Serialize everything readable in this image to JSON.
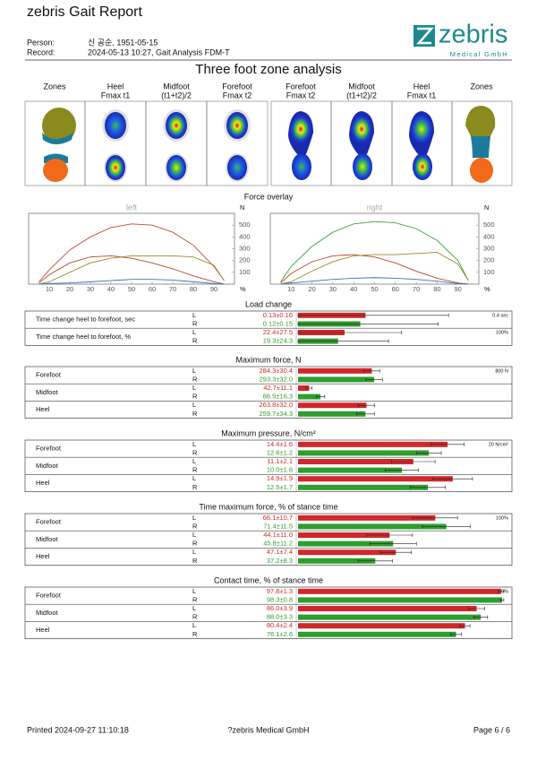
{
  "header": {
    "title": "zebris Gait Report",
    "person_label": "Person:",
    "person": "신 공순, 1951-05-15",
    "record_label": "Record:",
    "record": "2024-05-13 10:27, Gait Analysis FDM-T",
    "logo": "zebris",
    "logo_sub": "Medical GmbH"
  },
  "zones": {
    "title": "Three foot zone analysis",
    "columns": [
      [
        "Zones"
      ],
      [
        "Heel",
        "Fmax t1"
      ],
      [
        "Midfoot",
        "(t1+t2)/2"
      ],
      [
        "Forefoot",
        "Fmax t2"
      ],
      [
        "Forefoot",
        "Fmax t2"
      ],
      [
        "Midfoot",
        "(t1+t2)/2"
      ],
      [
        "Heel",
        "Fmax t1"
      ],
      [
        "Zones"
      ]
    ]
  },
  "force_overlay": {
    "title": "Force overlay",
    "y_unit": "N",
    "x_unit": "%",
    "xlim": [
      0,
      100
    ],
    "ylim": [
      0,
      600
    ],
    "xticks": [
      10,
      20,
      30,
      40,
      50,
      60,
      70,
      80,
      90
    ],
    "yticks": [
      100,
      200,
      300,
      400,
      500
    ],
    "x": [
      5,
      10,
      20,
      30,
      40,
      50,
      60,
      70,
      80,
      90,
      95
    ],
    "charts": [
      {
        "title": "left",
        "series": [
          {
            "color": "#c8463c",
            "values": [
              20,
              120,
              290,
              400,
              480,
              510,
              500,
              440,
              330,
              150,
              30
            ]
          },
          {
            "color": "#b5472e",
            "values": [
              10,
              80,
              180,
              230,
              240,
              220,
              180,
              130,
              70,
              20,
              0
            ]
          },
          {
            "color": "#9a8a30",
            "values": [
              0,
              20,
              100,
              180,
              220,
              240,
              240,
              240,
              230,
              160,
              30
            ]
          },
          {
            "color": "#3a70c0",
            "values": [
              0,
              5,
              10,
              20,
              30,
              40,
              40,
              35,
              20,
              5,
              0
            ]
          }
        ]
      },
      {
        "title": "right",
        "series": [
          {
            "color": "#3aa63a",
            "values": [
              20,
              150,
              320,
              440,
              510,
              530,
              520,
              470,
              370,
              200,
              30
            ]
          },
          {
            "color": "#b5472e",
            "values": [
              10,
              90,
              190,
              240,
              250,
              230,
              180,
              110,
              50,
              10,
              0
            ]
          },
          {
            "color": "#9a8a30",
            "values": [
              0,
              20,
              110,
              190,
              240,
              250,
              250,
              260,
              270,
              170,
              30
            ]
          },
          {
            "color": "#3a70c0",
            "values": [
              0,
              10,
              25,
              40,
              50,
              55,
              50,
              40,
              25,
              5,
              0
            ]
          }
        ]
      }
    ]
  },
  "bar_colors": {
    "L": "#d0282b",
    "R": "#2e9e2e"
  },
  "sections": [
    {
      "title": "Load change",
      "groups": [
        {
          "label": "Time change heel to forefoot, sec",
          "scale": {
            "max": 0.4,
            "label": "0.4 sec"
          },
          "rows": [
            {
              "side": "L",
              "value": 0.13,
              "error": 0.16,
              "label": "0.13±0.16"
            },
            {
              "side": "R",
              "value": 0.12,
              "error": 0.15,
              "label": "0.12±0.15"
            }
          ]
        },
        {
          "label": "Time change heel to forefoot, %",
          "scale": {
            "max": 100,
            "label": "100%"
          },
          "rows": [
            {
              "side": "L",
              "value": 22.4,
              "error": 27.5,
              "label": "22.4±27.5"
            },
            {
              "side": "R",
              "value": 19.3,
              "error": 24.3,
              "label": "19.3±24.3"
            }
          ]
        }
      ]
    },
    {
      "title": "Maximum force, N",
      "scale": {
        "max": 800,
        "label": "800 N"
      },
      "groups": [
        {
          "label": "Forefoot",
          "rows": [
            {
              "side": "L",
              "value": 284.3,
              "error": 30.4,
              "label": "284.3±30.4"
            },
            {
              "side": "R",
              "value": 293.3,
              "error": 32.0,
              "label": "293.3±32.0"
            }
          ]
        },
        {
          "label": "Midfoot",
          "rows": [
            {
              "side": "L",
              "value": 42.7,
              "error": 11.1,
              "label": "42.7±11.1"
            },
            {
              "side": "R",
              "value": 86.5,
              "error": 16.3,
              "label": "86.5±16.3"
            }
          ]
        },
        {
          "label": "Heel",
          "rows": [
            {
              "side": "L",
              "value": 263.8,
              "error": 32.0,
              "label": "263.8±32.0"
            },
            {
              "side": "R",
              "value": 259.7,
              "error": 34.3,
              "label": "259.7±34.3"
            }
          ]
        }
      ]
    },
    {
      "title": "Maximum pressure, N/cm²",
      "scale": {
        "max": 20,
        "label": "20 N/cm²"
      },
      "groups": [
        {
          "label": "Forefoot",
          "rows": [
            {
              "side": "L",
              "value": 14.4,
              "error": 1.6,
              "label": "14.4±1.6"
            },
            {
              "side": "R",
              "value": 12.6,
              "error": 1.2,
              "label": "12.6±1.2"
            }
          ]
        },
        {
          "label": "Midfoot",
          "rows": [
            {
              "side": "L",
              "value": 11.1,
              "error": 2.1,
              "label": "11.1±2.1"
            },
            {
              "side": "R",
              "value": 10.0,
              "error": 1.6,
              "label": "10.0±1.6"
            }
          ]
        },
        {
          "label": "Heel",
          "rows": [
            {
              "side": "L",
              "value": 14.9,
              "error": 1.9,
              "label": "14.9±1.9"
            },
            {
              "side": "R",
              "value": 12.5,
              "error": 1.7,
              "label": "12.5±1.7"
            }
          ]
        }
      ]
    },
    {
      "title": "Time maximum force,  % of stance time",
      "scale": {
        "max": 100,
        "label": "100%"
      },
      "groups": [
        {
          "label": "Forefoot",
          "rows": [
            {
              "side": "L",
              "value": 66.1,
              "error": 10.7,
              "label": "66.1±10.7"
            },
            {
              "side": "R",
              "value": 71.4,
              "error": 11.5,
              "label": "71.4±11.5"
            }
          ]
        },
        {
          "label": "Midfoot",
          "rows": [
            {
              "side": "L",
              "value": 44.1,
              "error": 11.0,
              "label": "44.1±11.0"
            },
            {
              "side": "R",
              "value": 45.8,
              "error": 11.2,
              "label": "45.8±11.2"
            }
          ]
        },
        {
          "label": "Heel",
          "rows": [
            {
              "side": "L",
              "value": 47.1,
              "error": 7.4,
              "label": "47.1±7.4"
            },
            {
              "side": "R",
              "value": 37.2,
              "error": 8.3,
              "label": "37.2±8.3"
            }
          ]
        }
      ]
    },
    {
      "title": "Contact time,  % of stance time",
      "scale": {
        "max": 100,
        "label": "100%"
      },
      "groups": [
        {
          "label": "Forefoot",
          "rows": [
            {
              "side": "L",
              "value": 97.8,
              "error": 1.3,
              "label": "97.8±1.3"
            },
            {
              "side": "R",
              "value": 98.3,
              "error": 0.8,
              "label": "98.3±0.8"
            }
          ]
        },
        {
          "label": "Midfoot",
          "rows": [
            {
              "side": "L",
              "value": 86.0,
              "error": 3.9,
              "label": "86.0±3.9"
            },
            {
              "side": "R",
              "value": 88.0,
              "error": 3.3,
              "label": "88.0±3.3"
            }
          ]
        },
        {
          "label": "Heel",
          "rows": [
            {
              "side": "L",
              "value": 80.4,
              "error": 2.4,
              "label": "80.4±2.4"
            },
            {
              "side": "R",
              "value": 76.1,
              "error": 2.6,
              "label": "76.1±2.6"
            }
          ]
        }
      ]
    }
  ],
  "footer": {
    "printed": "Printed  2024-09-27 11:10:18",
    "company": "?zebris Medical GmbH",
    "page": "Page  6 / 6"
  }
}
